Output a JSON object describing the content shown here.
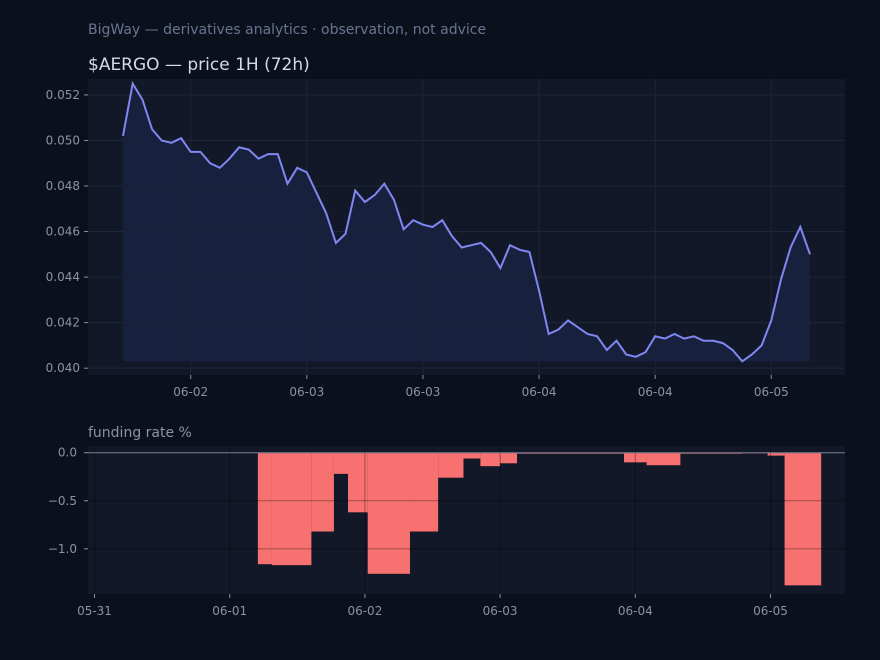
{
  "header": {
    "subtitle": "BigWay — derivatives analytics · observation, not advice",
    "title": "$AERGO — price 1H (72h)"
  },
  "colors": {
    "background": "#0b101d",
    "panel": "#121828",
    "price_line": "#7f87f2",
    "price_fill": "#18213e",
    "funding_negative": "#f87171",
    "grid": "#1f2638"
  },
  "chart_data": [
    {
      "type": "area",
      "title": "$AERGO — price 1H (72h)",
      "grid": true,
      "x_tick_labels": [
        "06-02",
        "06-03",
        "06-03",
        "06-04",
        "06-04",
        "06-05"
      ],
      "y_ticks": [
        "0.040",
        "0.042",
        "0.044",
        "0.046",
        "0.048",
        "0.050",
        "0.052"
      ],
      "ylim": [
        0.0397,
        0.0527
      ],
      "series": [
        {
          "values": [
            0.0502,
            0.0525,
            0.0518,
            0.0505,
            0.05,
            0.0499,
            0.0501,
            0.0495,
            0.0495,
            0.049,
            0.0488,
            0.0492,
            0.0497,
            0.0496,
            0.0492,
            0.0494,
            0.0494,
            0.0481,
            0.0488,
            0.0486,
            0.0477,
            0.0468,
            0.0455,
            0.0459,
            0.0478,
            0.0473,
            0.0476,
            0.0481,
            0.0474,
            0.0461,
            0.0465,
            0.0463,
            0.0462,
            0.0465,
            0.0458,
            0.0453,
            0.0454,
            0.0455,
            0.0451,
            0.0444,
            0.0454,
            0.0452,
            0.0451,
            0.0434,
            0.0415,
            0.0417,
            0.0421,
            0.0418,
            0.0415,
            0.0414,
            0.0408,
            0.0412,
            0.0406,
            0.0405,
            0.0407,
            0.0414,
            0.0413,
            0.0415,
            0.0413,
            0.0414,
            0.0412,
            0.0412,
            0.0411,
            0.0408,
            0.0403,
            0.0406,
            0.041,
            0.0421,
            0.0439,
            0.0453,
            0.0462,
            0.045
          ]
        }
      ]
    },
    {
      "type": "bar",
      "title": "funding rate %",
      "grid": true,
      "x_tick_labels": [
        "05-31",
        "06-01",
        "06-02",
        "06-03",
        "06-04",
        "06-05"
      ],
      "x_ticks": [
        "2025-05-31",
        "2025-06-01",
        "2025-06-02",
        "2025-06-03",
        "2025-06-04",
        "2025-06-05"
      ],
      "y_ticks": [
        "0.0",
        "−0.5",
        "−1.0"
      ],
      "ylim": [
        -1.47,
        0.07
      ],
      "bars": [
        {
          "start": "2025-06-01 05:00",
          "end": "2025-06-01 07:30",
          "value": -1.16
        },
        {
          "start": "2025-06-01 07:30",
          "end": "2025-06-01 14:30",
          "value": -1.17
        },
        {
          "start": "2025-06-01 14:30",
          "end": "2025-06-01 18:30",
          "value": -0.82
        },
        {
          "start": "2025-06-01 18:30",
          "end": "2025-06-01 21:00",
          "value": -0.22
        },
        {
          "start": "2025-06-01 21:00",
          "end": "2025-06-02 00:30",
          "value": -0.62
        },
        {
          "start": "2025-06-02 00:30",
          "end": "2025-06-02 08:00",
          "value": -1.26
        },
        {
          "start": "2025-06-02 08:00",
          "end": "2025-06-02 13:00",
          "value": -0.82
        },
        {
          "start": "2025-06-02 13:00",
          "end": "2025-06-02 17:30",
          "value": -0.26
        },
        {
          "start": "2025-06-02 17:30",
          "end": "2025-06-02 20:30",
          "value": -0.06
        },
        {
          "start": "2025-06-02 20:30",
          "end": "2025-06-03 00:00",
          "value": -0.14
        },
        {
          "start": "2025-06-03 00:00",
          "end": "2025-06-03 03:00",
          "value": -0.11
        },
        {
          "start": "2025-06-03 03:00",
          "end": "2025-06-03 22:00",
          "value": -0.01
        },
        {
          "start": "2025-06-03 22:00",
          "end": "2025-06-04 02:00",
          "value": -0.1
        },
        {
          "start": "2025-06-04 02:00",
          "end": "2025-06-04 08:00",
          "value": -0.13
        },
        {
          "start": "2025-06-04 08:00",
          "end": "2025-06-04 19:00",
          "value": -0.01
        },
        {
          "start": "2025-06-04 19:00",
          "end": "2025-06-04 23:30",
          "value": 0.0
        },
        {
          "start": "2025-06-04 23:30",
          "end": "2025-06-05 02:30",
          "value": -0.03
        },
        {
          "start": "2025-06-05 02:30",
          "end": "2025-06-05 09:00",
          "value": -1.38
        }
      ]
    }
  ]
}
